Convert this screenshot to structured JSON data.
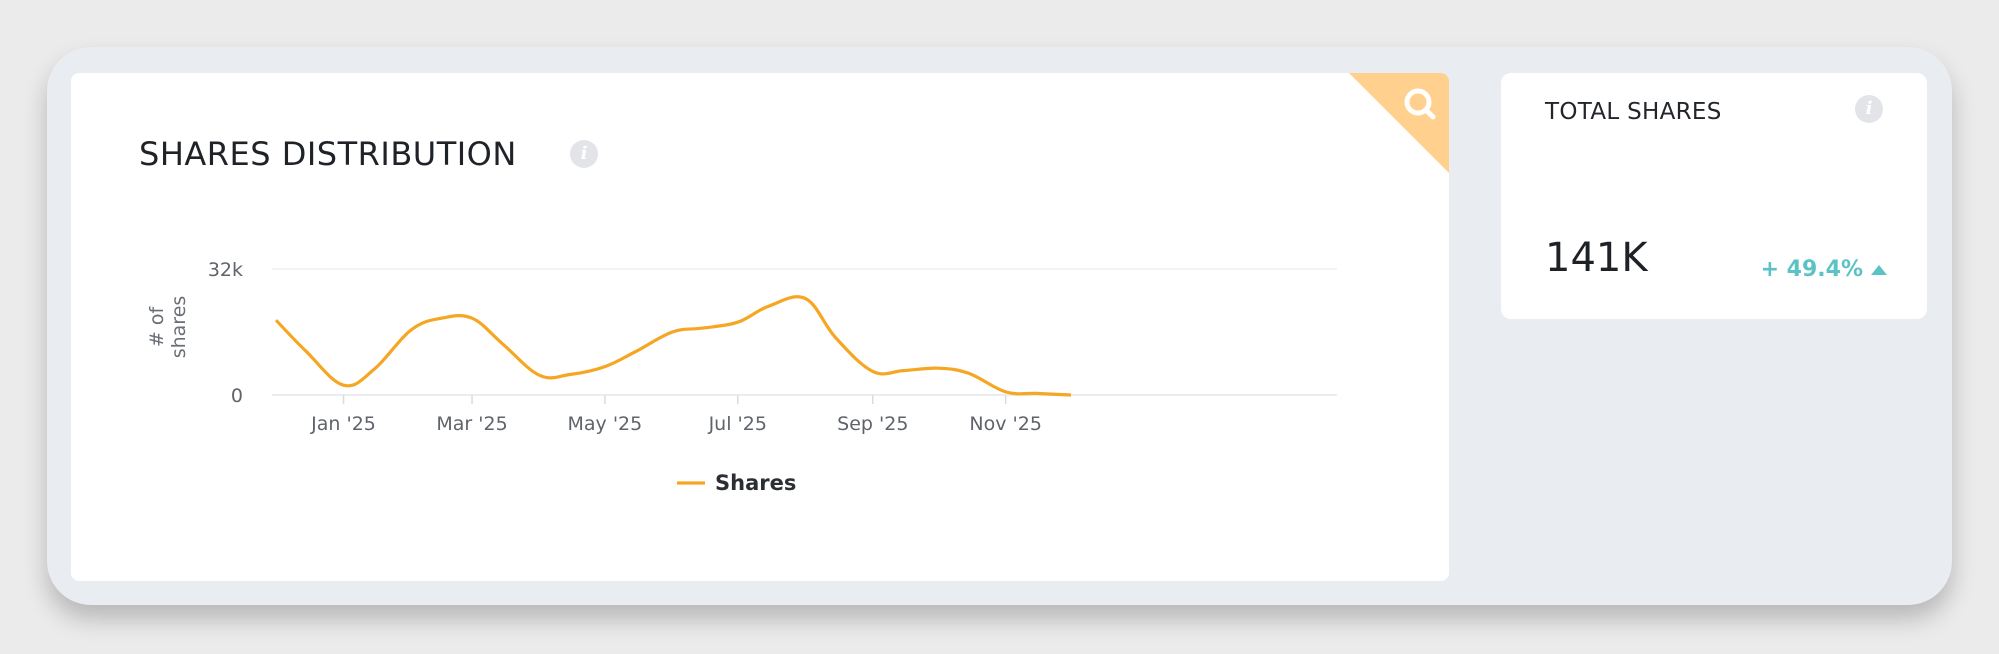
{
  "chart_card": {
    "title": "SHARES DISTRIBUTION",
    "info_icon": "info-icon",
    "corner_icon": "search-icon",
    "corner_color": "#ffd08e"
  },
  "chart_data": {
    "type": "line",
    "ylabel": "# of shares",
    "ylim": [
      0,
      32000
    ],
    "y_ticks": [
      "0",
      "32k"
    ],
    "x_ticks": [
      "Jan '25",
      "Mar '25",
      "May '25",
      "Jul '25",
      "Sep '25",
      "Nov '25"
    ],
    "legend": "bottom-center",
    "series": [
      {
        "name": "Shares",
        "color": "#f5a623",
        "points": [
          {
            "x": "2024-12-01",
            "y": 19000
          },
          {
            "x": "2024-12-15",
            "y": 11000
          },
          {
            "x": "2025-01-01",
            "y": 2500
          },
          {
            "x": "2025-01-15",
            "y": 6500
          },
          {
            "x": "2025-02-01",
            "y": 16500
          },
          {
            "x": "2025-02-15",
            "y": 19500
          },
          {
            "x": "2025-03-01",
            "y": 19500
          },
          {
            "x": "2025-03-15",
            "y": 13000
          },
          {
            "x": "2025-04-01",
            "y": 5000
          },
          {
            "x": "2025-04-15",
            "y": 5200
          },
          {
            "x": "2025-05-01",
            "y": 7200
          },
          {
            "x": "2025-05-15",
            "y": 11000
          },
          {
            "x": "2025-06-01",
            "y": 16000
          },
          {
            "x": "2025-06-15",
            "y": 17000
          },
          {
            "x": "2025-07-01",
            "y": 18500
          },
          {
            "x": "2025-07-15",
            "y": 22500
          },
          {
            "x": "2025-08-01",
            "y": 24500
          },
          {
            "x": "2025-08-15",
            "y": 14500
          },
          {
            "x": "2025-09-01",
            "y": 6000
          },
          {
            "x": "2025-09-15",
            "y": 6200
          },
          {
            "x": "2025-10-01",
            "y": 6800
          },
          {
            "x": "2025-10-15",
            "y": 5500
          },
          {
            "x": "2025-11-01",
            "y": 800
          },
          {
            "x": "2025-11-15",
            "y": 400
          },
          {
            "x": "2025-12-01",
            "y": 0
          }
        ]
      }
    ]
  },
  "stats_card": {
    "title": "TOTAL SHARES",
    "info_icon": "info-icon",
    "value": "141K",
    "change": "+ 49.4%",
    "change_direction_icon": "triangle-up-icon",
    "change_color": "#5bc3c5"
  }
}
